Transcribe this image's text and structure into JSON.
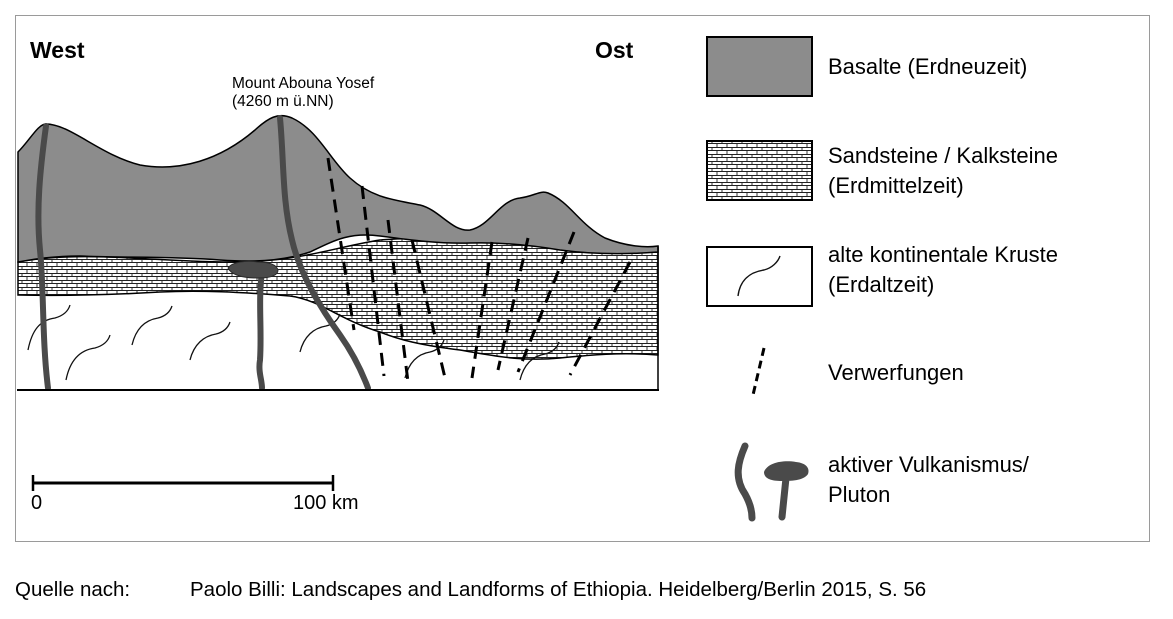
{
  "diagram": {
    "labels": {
      "west": "West",
      "east": "Ost",
      "peak_name": "Mount Abouna Yosef",
      "peak_height": "(4260 m ü.NN)"
    },
    "scale": {
      "start": "0",
      "end": "100 km"
    },
    "legend": [
      {
        "id": "basalt",
        "line1": "Basalte (Erdneuzeit)",
        "line2": "",
        "fill": "#8c8c8c"
      },
      {
        "id": "sandstone",
        "line1": "Sandsteine / Kalksteine",
        "line2": "(Erdmittelzeit)",
        "fill": "brick-pattern"
      },
      {
        "id": "crust",
        "line1": "alte kontinentale Kruste",
        "line2": "(Erdaltzeit)",
        "fill": "#ffffff"
      },
      {
        "id": "faults",
        "line1": "Verwerfungen",
        "line2": "",
        "fill": "dashed-line"
      },
      {
        "id": "volcanism",
        "line1": "aktiver Vulkanismus/",
        "line2": "Pluton",
        "fill": "#4a4a4a"
      }
    ],
    "colors": {
      "basalt": "#8c8c8c",
      "dike": "#4a4a4a",
      "outline": "#000000"
    }
  },
  "source": {
    "label": "Quelle nach:",
    "text": "Paolo Billi: Landscapes and Landforms of Ethiopia. Heidelberg/Berlin 2015, S. 56"
  }
}
